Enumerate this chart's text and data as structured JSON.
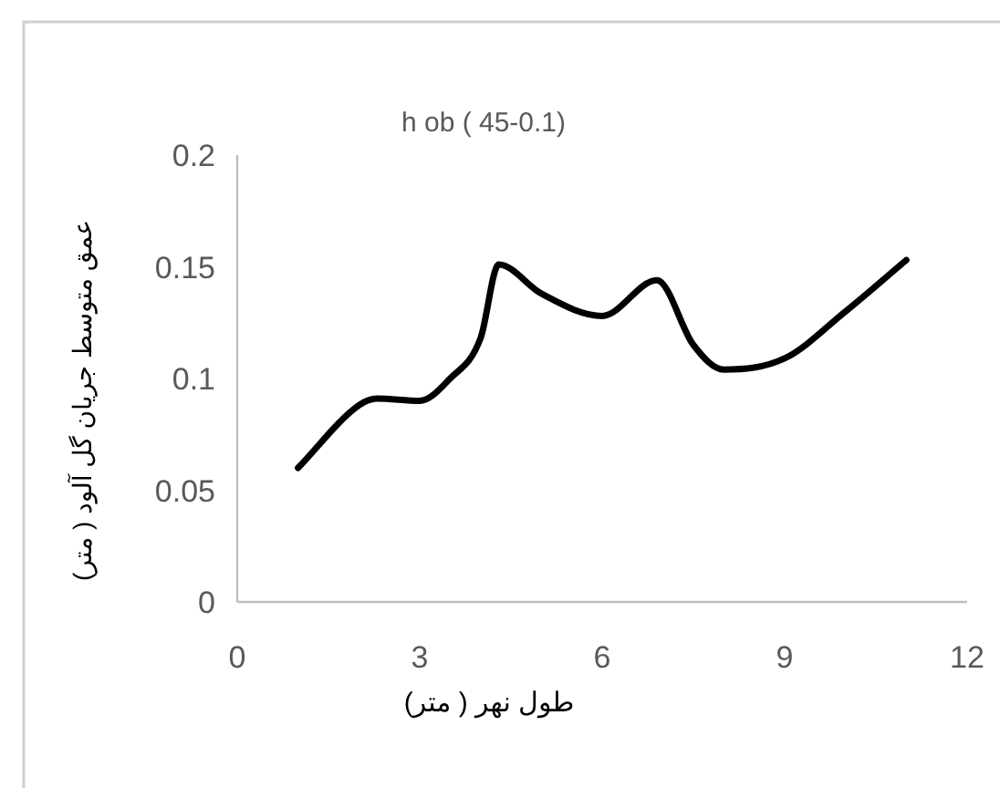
{
  "chart_data": {
    "type": "line",
    "title": "h ob ( 45-0.1)",
    "xlabel": "طول نهر ( متر)",
    "ylabel": "عمق متوسط جریان گل آلود ( متر)",
    "x": [
      1,
      2,
      2.3,
      3,
      3.5,
      4,
      4.3,
      5,
      6,
      6.9,
      7.5,
      8,
      9,
      10,
      11
    ],
    "series": [
      {
        "color": "#000000",
        "values": [
          0.06,
          0.088,
          0.091,
          0.09,
          0.1,
          0.118,
          0.151,
          0.138,
          0.128,
          0.144,
          0.115,
          0.104,
          0.109,
          0.13,
          0.153
        ]
      }
    ],
    "xlim": [
      0,
      12
    ],
    "xticks": [
      0,
      3,
      6,
      9,
      12
    ],
    "ylim": [
      0,
      0.2
    ],
    "yticks": [
      0,
      0.05,
      0.1,
      0.15,
      0.2
    ],
    "marker": "none",
    "line_style": "solid"
  }
}
